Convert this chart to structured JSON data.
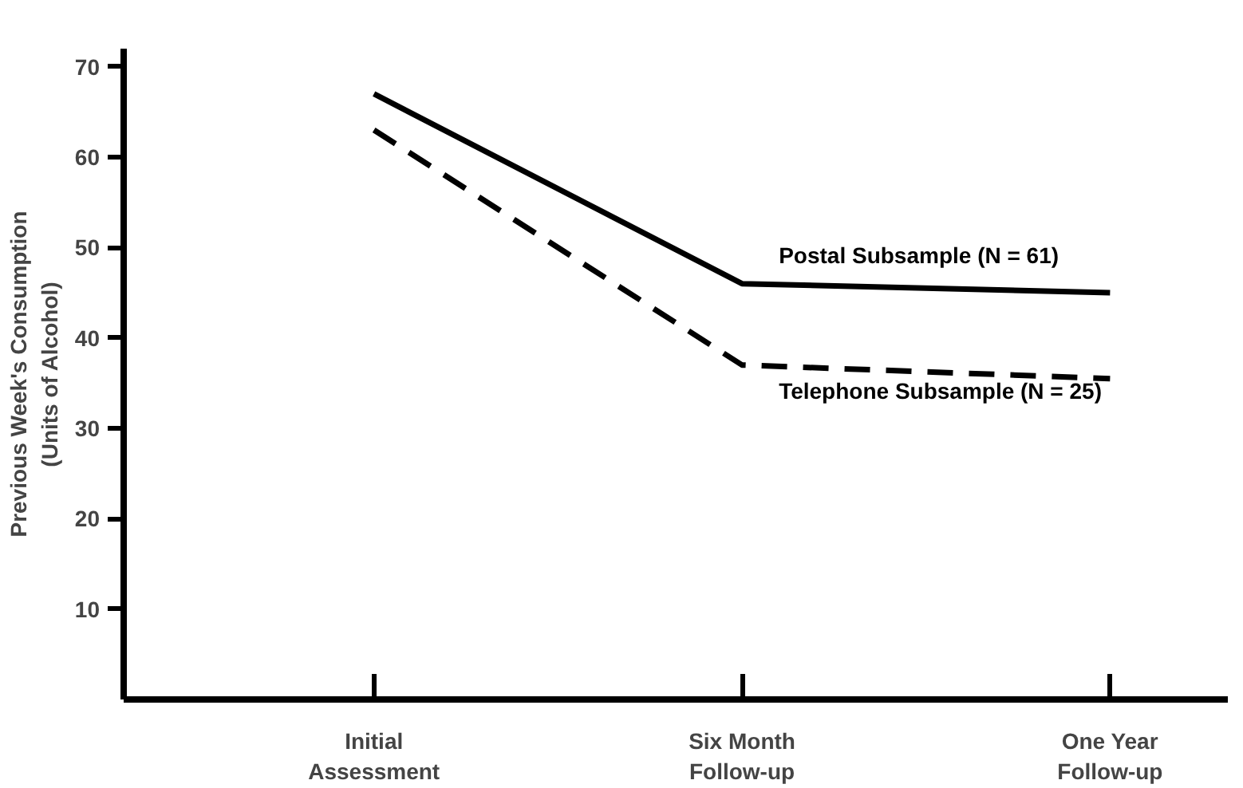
{
  "chart_data": {
    "type": "line",
    "ylabel": "Previous Week's Consumption\n(Units of Alcohol)",
    "categories": [
      "Initial\nAssessment",
      "Six Month\nFollow-up",
      "One Year\nFollow-up"
    ],
    "ylim": [
      0,
      72
    ],
    "yticks": [
      10,
      20,
      30,
      40,
      50,
      60,
      70
    ],
    "grid": false,
    "legend": false,
    "marker": "none",
    "series": [
      {
        "name": "Postal Subsample (N = 61)",
        "color": "#000000",
        "line_style": "solid",
        "values": [
          67,
          46,
          45
        ]
      },
      {
        "name": "Telephone Subsample (N = 25)",
        "color": "#000000",
        "line_style": "dashed",
        "values": [
          63,
          37,
          35.5
        ]
      }
    ]
  }
}
